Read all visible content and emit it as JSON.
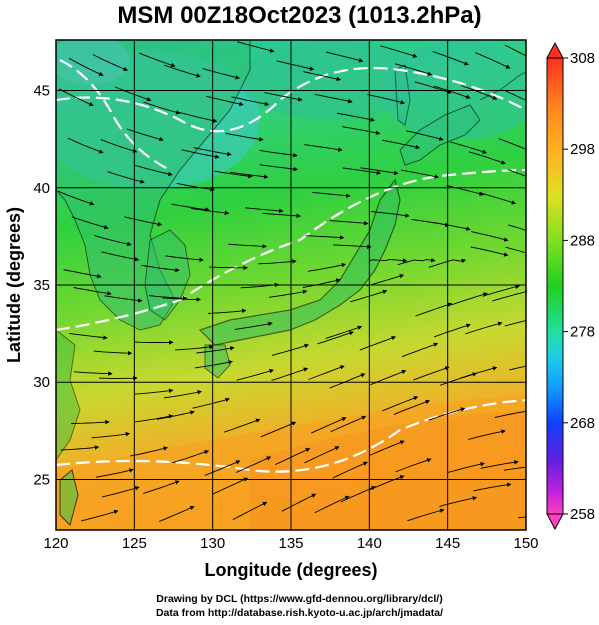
{
  "title": "MSM 00Z18Oct2023 (1013.2hPa)",
  "map": {
    "xlabel": "Longitude (degrees)",
    "ylabel": "Latitude  (degrees)",
    "lon_range": [
      120,
      150
    ],
    "lat_range": [
      22.4,
      47.6
    ],
    "x_ticks": [
      120,
      125,
      130,
      135,
      140,
      145,
      150
    ],
    "y_ticks": [
      25,
      30,
      35,
      40,
      45
    ],
    "grid": true
  },
  "colorbar": {
    "ticks": [
      308,
      298,
      288,
      278,
      268,
      258
    ],
    "range": [
      258,
      308
    ],
    "colors": [
      "#ff40c0",
      "#c020e0",
      "#6020e0",
      "#1040ff",
      "#10a0ff",
      "#20e0e0",
      "#20e070",
      "#20d020",
      "#80e020",
      "#e0e020",
      "#ffb020",
      "#ff8020",
      "#ff3020"
    ]
  },
  "credits": {
    "line1": "Drawing by DCL (https://www.gfd-dennou.org/library/dcl/)",
    "line2": "Data from http://database.rish.kyoto-u.ac.jp/arch/jmadata/"
  }
}
